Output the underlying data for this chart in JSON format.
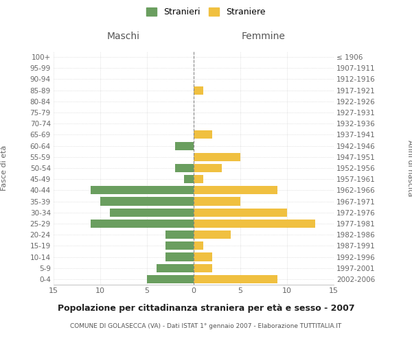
{
  "age_groups": [
    "0-4",
    "5-9",
    "10-14",
    "15-19",
    "20-24",
    "25-29",
    "30-34",
    "35-39",
    "40-44",
    "45-49",
    "50-54",
    "55-59",
    "60-64",
    "65-69",
    "70-74",
    "75-79",
    "80-84",
    "85-89",
    "90-94",
    "95-99",
    "100+"
  ],
  "birth_years": [
    "2002-2006",
    "1997-2001",
    "1992-1996",
    "1987-1991",
    "1982-1986",
    "1977-1981",
    "1972-1976",
    "1967-1971",
    "1962-1966",
    "1957-1961",
    "1952-1956",
    "1947-1951",
    "1942-1946",
    "1937-1941",
    "1932-1936",
    "1927-1931",
    "1922-1926",
    "1917-1921",
    "1912-1916",
    "1907-1911",
    "≤ 1906"
  ],
  "maschi": [
    5,
    4,
    3,
    3,
    3,
    11,
    9,
    10,
    11,
    1,
    2,
    0,
    2,
    0,
    0,
    0,
    0,
    0,
    0,
    0,
    0
  ],
  "femmine": [
    9,
    2,
    2,
    1,
    4,
    13,
    10,
    5,
    9,
    1,
    3,
    5,
    0,
    2,
    0,
    0,
    0,
    1,
    0,
    0,
    0
  ],
  "maschi_color": "#6a9e5f",
  "femmine_color": "#f0c040",
  "title": "Popolazione per cittadinanza straniera per età e sesso - 2007",
  "subtitle": "COMUNE DI GOLASECCA (VA) - Dati ISTAT 1° gennaio 2007 - Elaborazione TUTTITALIA.IT",
  "xlabel_left": "Maschi",
  "xlabel_right": "Femmine",
  "ylabel_left": "Fasce di età",
  "ylabel_right": "Anni di nascita",
  "legend_stranieri": "Stranieri",
  "legend_straniere": "Straniere",
  "xlim": 15,
  "background_color": "#ffffff",
  "grid_color": "#cccccc"
}
